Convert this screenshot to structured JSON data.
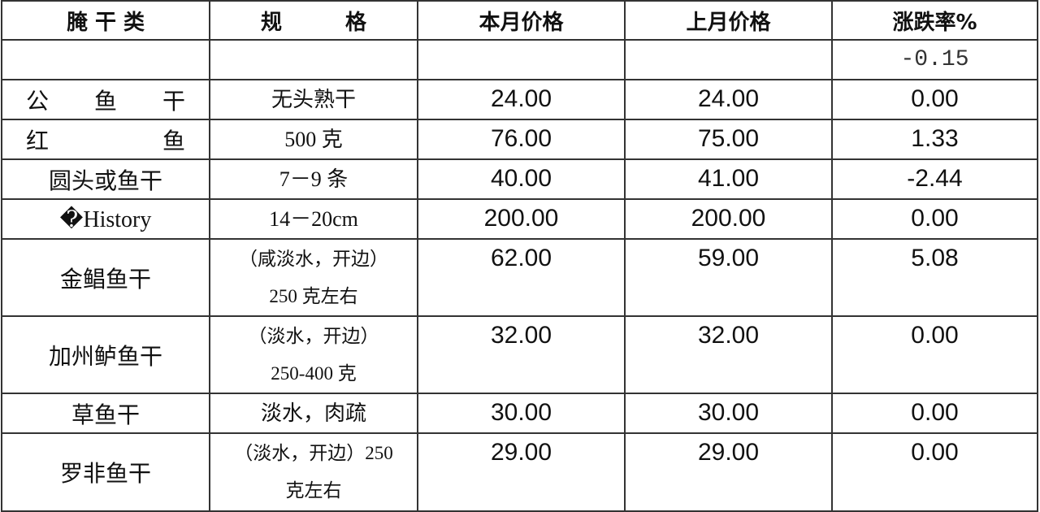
{
  "header": [
    "腌 干 类",
    "规　　　格",
    "本月价格",
    "上月价格",
    "涨跌率%"
  ],
  "summary_row": {
    "change": "-0.15"
  },
  "rows": [
    {
      "name": "公　　鱼　　干",
      "spec": [
        "无头熟干"
      ],
      "this_month": "24.00",
      "last_month": "24.00",
      "change": "0.00"
    },
    {
      "name": "红　　　　　鱼",
      "spec": [
        "500 克"
      ],
      "this_month": "76.00",
      "last_month": "75.00",
      "change": "1.33"
    },
    {
      "name": "圆头或鱼干",
      "spec": [
        "7－9 条"
      ],
      "this_month": "40.00",
      "last_month": "41.00",
      "change": "-2.44"
    },
    {
      "name": "�History",
      "spec": [
        "14－20cm"
      ],
      "this_month": "200.00",
      "last_month": "200.00",
      "change": "0.00"
    },
    {
      "name": "金鲳鱼干",
      "spec": [
        "（咸淡水，开边）",
        "250 克左右"
      ],
      "this_month": "62.00",
      "last_month": "59.00",
      "change": "5.08"
    },
    {
      "name": "加州鲈鱼干",
      "spec": [
        "（淡水，开边）",
        "250-400 克"
      ],
      "this_month": "32.00",
      "last_month": "32.00",
      "change": "0.00"
    },
    {
      "name": "草鱼干",
      "spec": [
        "淡水，肉疏"
      ],
      "this_month": "30.00",
      "last_month": "30.00",
      "change": "0.00"
    },
    {
      "name": "罗非鱼干",
      "spec": [
        "（淡水，开边）250",
        "克左右"
      ],
      "this_month": "29.00",
      "last_month": "29.00",
      "change": "0.00"
    }
  ]
}
